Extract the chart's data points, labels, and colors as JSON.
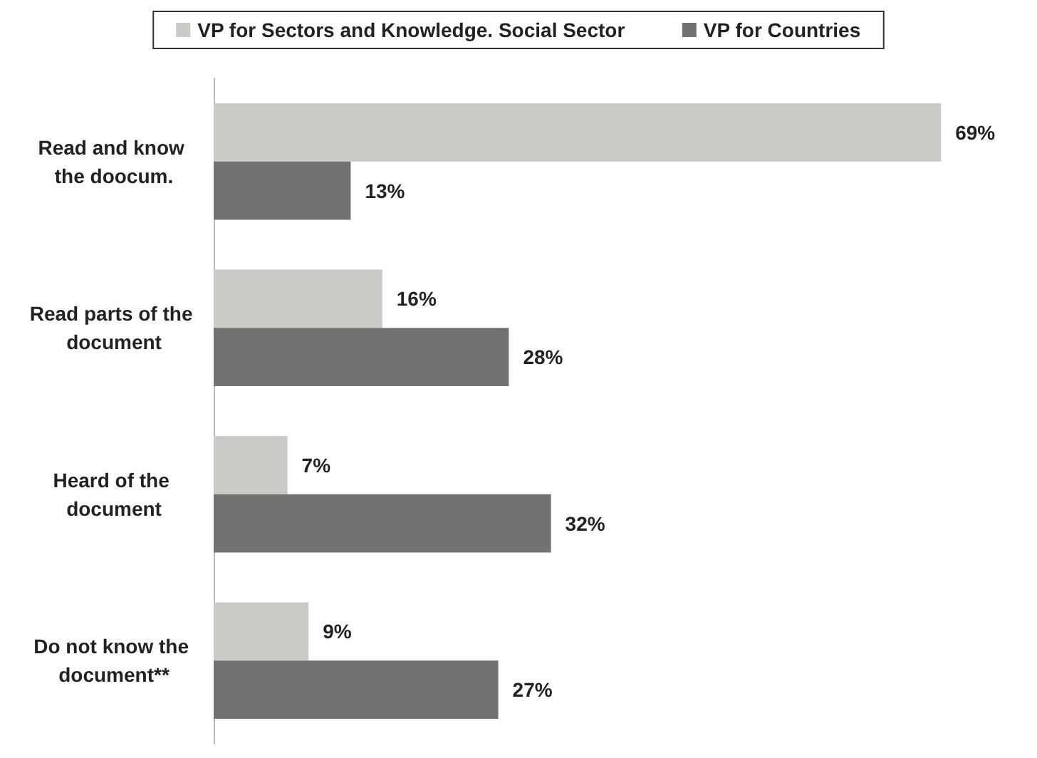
{
  "chart_data": {
    "type": "bar",
    "orientation": "horizontal",
    "categories": [
      "Read and know the doocum.",
      "Read parts of the document",
      "Heard of the document",
      "Do not know the document**"
    ],
    "series": [
      {
        "name": "VP for Sectors and Knowledge. Social Sector",
        "color": "#c9cbc7",
        "values": [
          69,
          16,
          7,
          9
        ],
        "value_labels": [
          "69%",
          "16%",
          "7%",
          "9%"
        ]
      },
      {
        "name": "VP for Countries",
        "color": "#707370",
        "values": [
          13,
          28,
          32,
          27
        ],
        "value_labels": [
          "13%",
          "28%",
          "32%",
          "27%"
        ]
      }
    ],
    "legend": "top"
  }
}
